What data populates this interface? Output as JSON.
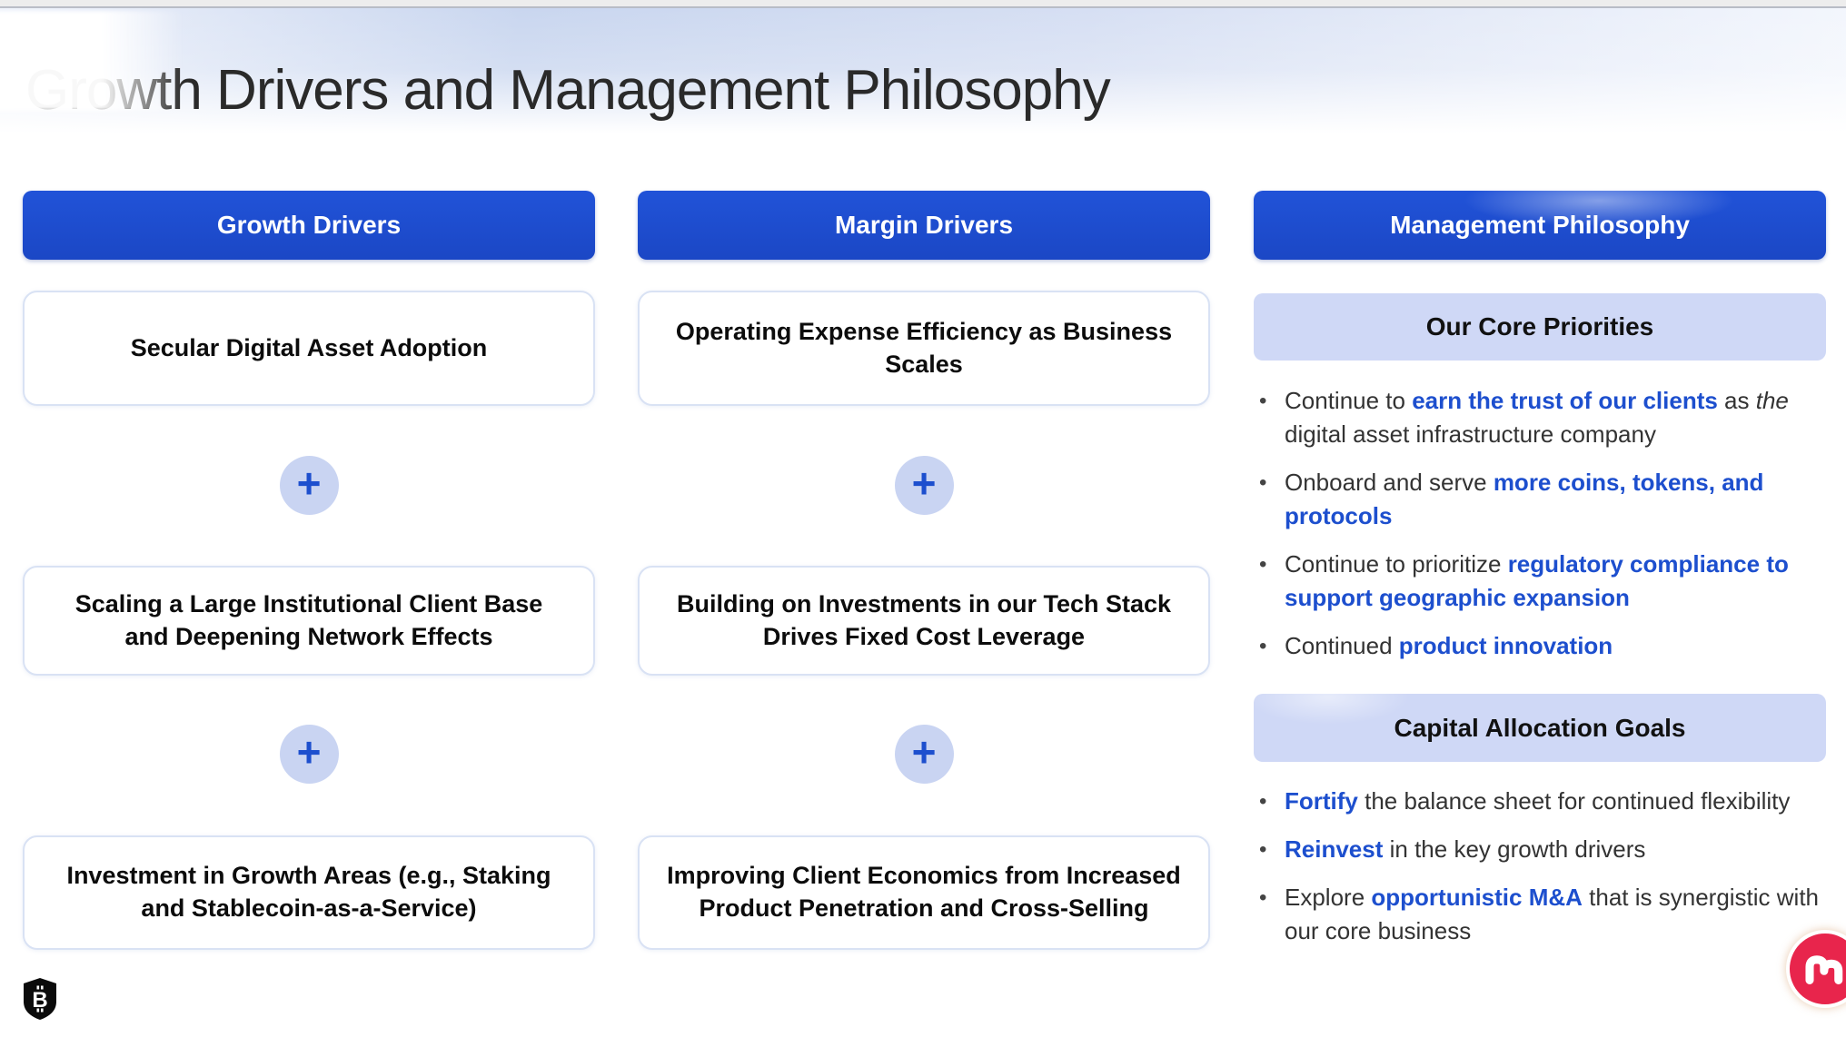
{
  "slide": {
    "title": "Growth Drivers and Management Philosophy"
  },
  "columns": {
    "growth": {
      "header": "Growth Drivers",
      "boxes": [
        "Secular Digital Asset Adoption",
        "Scaling a Large Institutional Client Base and Deepening Network Effects",
        "Investment in Growth Areas (e.g., Staking and Stablecoin-as-a-Service)"
      ]
    },
    "margin": {
      "header": "Margin Drivers",
      "boxes": [
        "Operating Expense Efficiency as Business Scales",
        "Building on Investments in our Tech Stack Drives Fixed Cost Leverage",
        "Improving Client Economics from Increased Product Penetration and Cross-Selling"
      ]
    },
    "management": {
      "header": "Management Philosophy",
      "sections": [
        {
          "title": "Our Core Priorities",
          "bullets": [
            [
              {
                "t": "Continue to ",
                "s": "p"
              },
              {
                "t": "earn the trust of our clients",
                "s": "b"
              },
              {
                "t": " as ",
                "s": "p"
              },
              {
                "t": "the",
                "s": "i"
              },
              {
                "t": " digital asset infrastructure company",
                "s": "p"
              }
            ],
            [
              {
                "t": "Onboard and serve ",
                "s": "p"
              },
              {
                "t": "more coins, tokens, and protocols",
                "s": "b"
              }
            ],
            [
              {
                "t": "Continue to prioritize ",
                "s": "p"
              },
              {
                "t": "regulatory compliance to support geographic expansion",
                "s": "b"
              }
            ],
            [
              {
                "t": "Continued ",
                "s": "p"
              },
              {
                "t": "product innovation",
                "s": "b"
              }
            ]
          ]
        },
        {
          "title": "Capital Allocation Goals",
          "bullets": [
            [
              {
                "t": "Fortify",
                "s": "b"
              },
              {
                "t": " the balance sheet for continued flexibility",
                "s": "p"
              }
            ],
            [
              {
                "t": "Reinvest",
                "s": "b"
              },
              {
                "t": " in the key growth drivers",
                "s": "p"
              }
            ],
            [
              {
                "t": "Explore ",
                "s": "p"
              },
              {
                "t": "opportunistic M&A",
                "s": "b"
              },
              {
                "t": " that is synergistic with our core business",
                "s": "p"
              }
            ]
          ]
        }
      ]
    }
  },
  "icons": {
    "plus": "+",
    "bullet": "•",
    "shield_letter": "B"
  },
  "colors": {
    "accent_blue": "#1d4fce",
    "header_blue": "#2153d8",
    "band_light_blue": "#cfd8f6",
    "plus_circle_bg": "#c9d4f2",
    "logo_red": "#e8254c",
    "shield_black": "#0b0b0b"
  }
}
